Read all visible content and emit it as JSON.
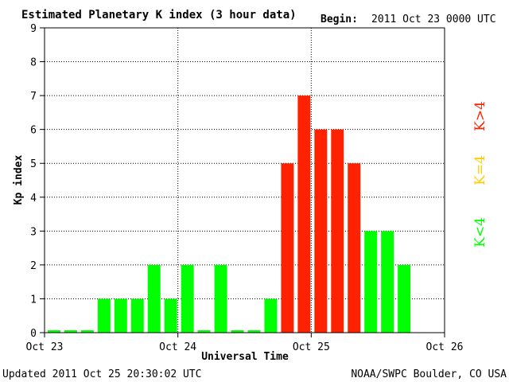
{
  "chart_data": {
    "type": "bar",
    "title": "Estimated Planetary K index (3 hour data)",
    "begin_label": "Begin:",
    "begin_value": "2011 Oct 23 0000 UTC",
    "xlabel": "Universal Time",
    "ylabel": "Kp index",
    "ylim": [
      0,
      9
    ],
    "yticks": [
      0,
      1,
      2,
      3,
      4,
      5,
      6,
      7,
      8,
      9
    ],
    "xlim": [
      0,
      72
    ],
    "xticks": [
      {
        "hours": 0,
        "label": "Oct 23"
      },
      {
        "hours": 24,
        "label": "Oct 24"
      },
      {
        "hours": 48,
        "label": "Oct 25"
      },
      {
        "hours": 72,
        "label": "Oct 26"
      }
    ],
    "interval_hours": 3,
    "values": [
      0,
      0,
      0,
      1,
      1,
      1,
      2,
      1,
      2,
      0,
      2,
      0,
      0,
      1,
      5,
      7,
      6,
      6,
      5,
      3,
      3,
      2
    ],
    "grid": "dotted",
    "colors": {
      "low": "#00ff00",
      "equal": "#ffcc00",
      "high": "#ff2200"
    },
    "legend": [
      "K<4",
      "K=4",
      "K>4"
    ],
    "updated": "Updated 2011 Oct 25 20:30:02 UTC",
    "credit": "NOAA/SWPC Boulder, CO USA"
  }
}
